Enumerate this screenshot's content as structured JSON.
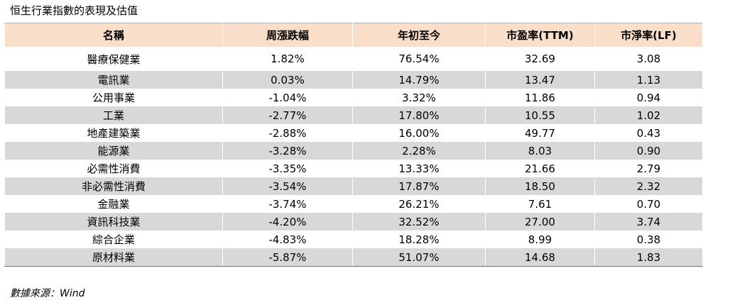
{
  "title": "恒生行業指數的表現及估值",
  "columns": [
    "名稱",
    "周漲跌幅",
    "年初至今",
    "市盈率(TTM)",
    "市淨率(LF)"
  ],
  "rows": [
    [
      "醫療保健業",
      "1.82%",
      "76.54%",
      "32.69",
      "3.08"
    ],
    [
      "電訊業",
      "0.03%",
      "14.79%",
      "13.47",
      "1.13"
    ],
    [
      "公用事業",
      "-1.04%",
      "3.32%",
      "11.86",
      "0.94"
    ],
    [
      "工業",
      "-2.77%",
      "17.80%",
      "10.55",
      "1.02"
    ],
    [
      "地產建築業",
      "-2.88%",
      "16.00%",
      "49.77",
      "0.43"
    ],
    [
      "能源業",
      "-3.28%",
      "2.28%",
      "8.03",
      "0.90"
    ],
    [
      "必需性消費",
      "-3.35%",
      "13.33%",
      "21.66",
      "2.79"
    ],
    [
      "非必需性消費",
      "-3.54%",
      "17.87%",
      "18.50",
      "2.32"
    ],
    [
      "金融業",
      "-3.74%",
      "26.21%",
      "7.61",
      "0.70"
    ],
    [
      "資訊科技業",
      "-4.20%",
      "32.52%",
      "27.00",
      "3.74"
    ],
    [
      "綜合企業",
      "-4.83%",
      "18.28%",
      "8.99",
      "0.38"
    ],
    [
      "原材料業",
      "-5.87%",
      "51.07%",
      "14.68",
      "1.83"
    ]
  ],
  "source": "數據來源：Wind"
}
